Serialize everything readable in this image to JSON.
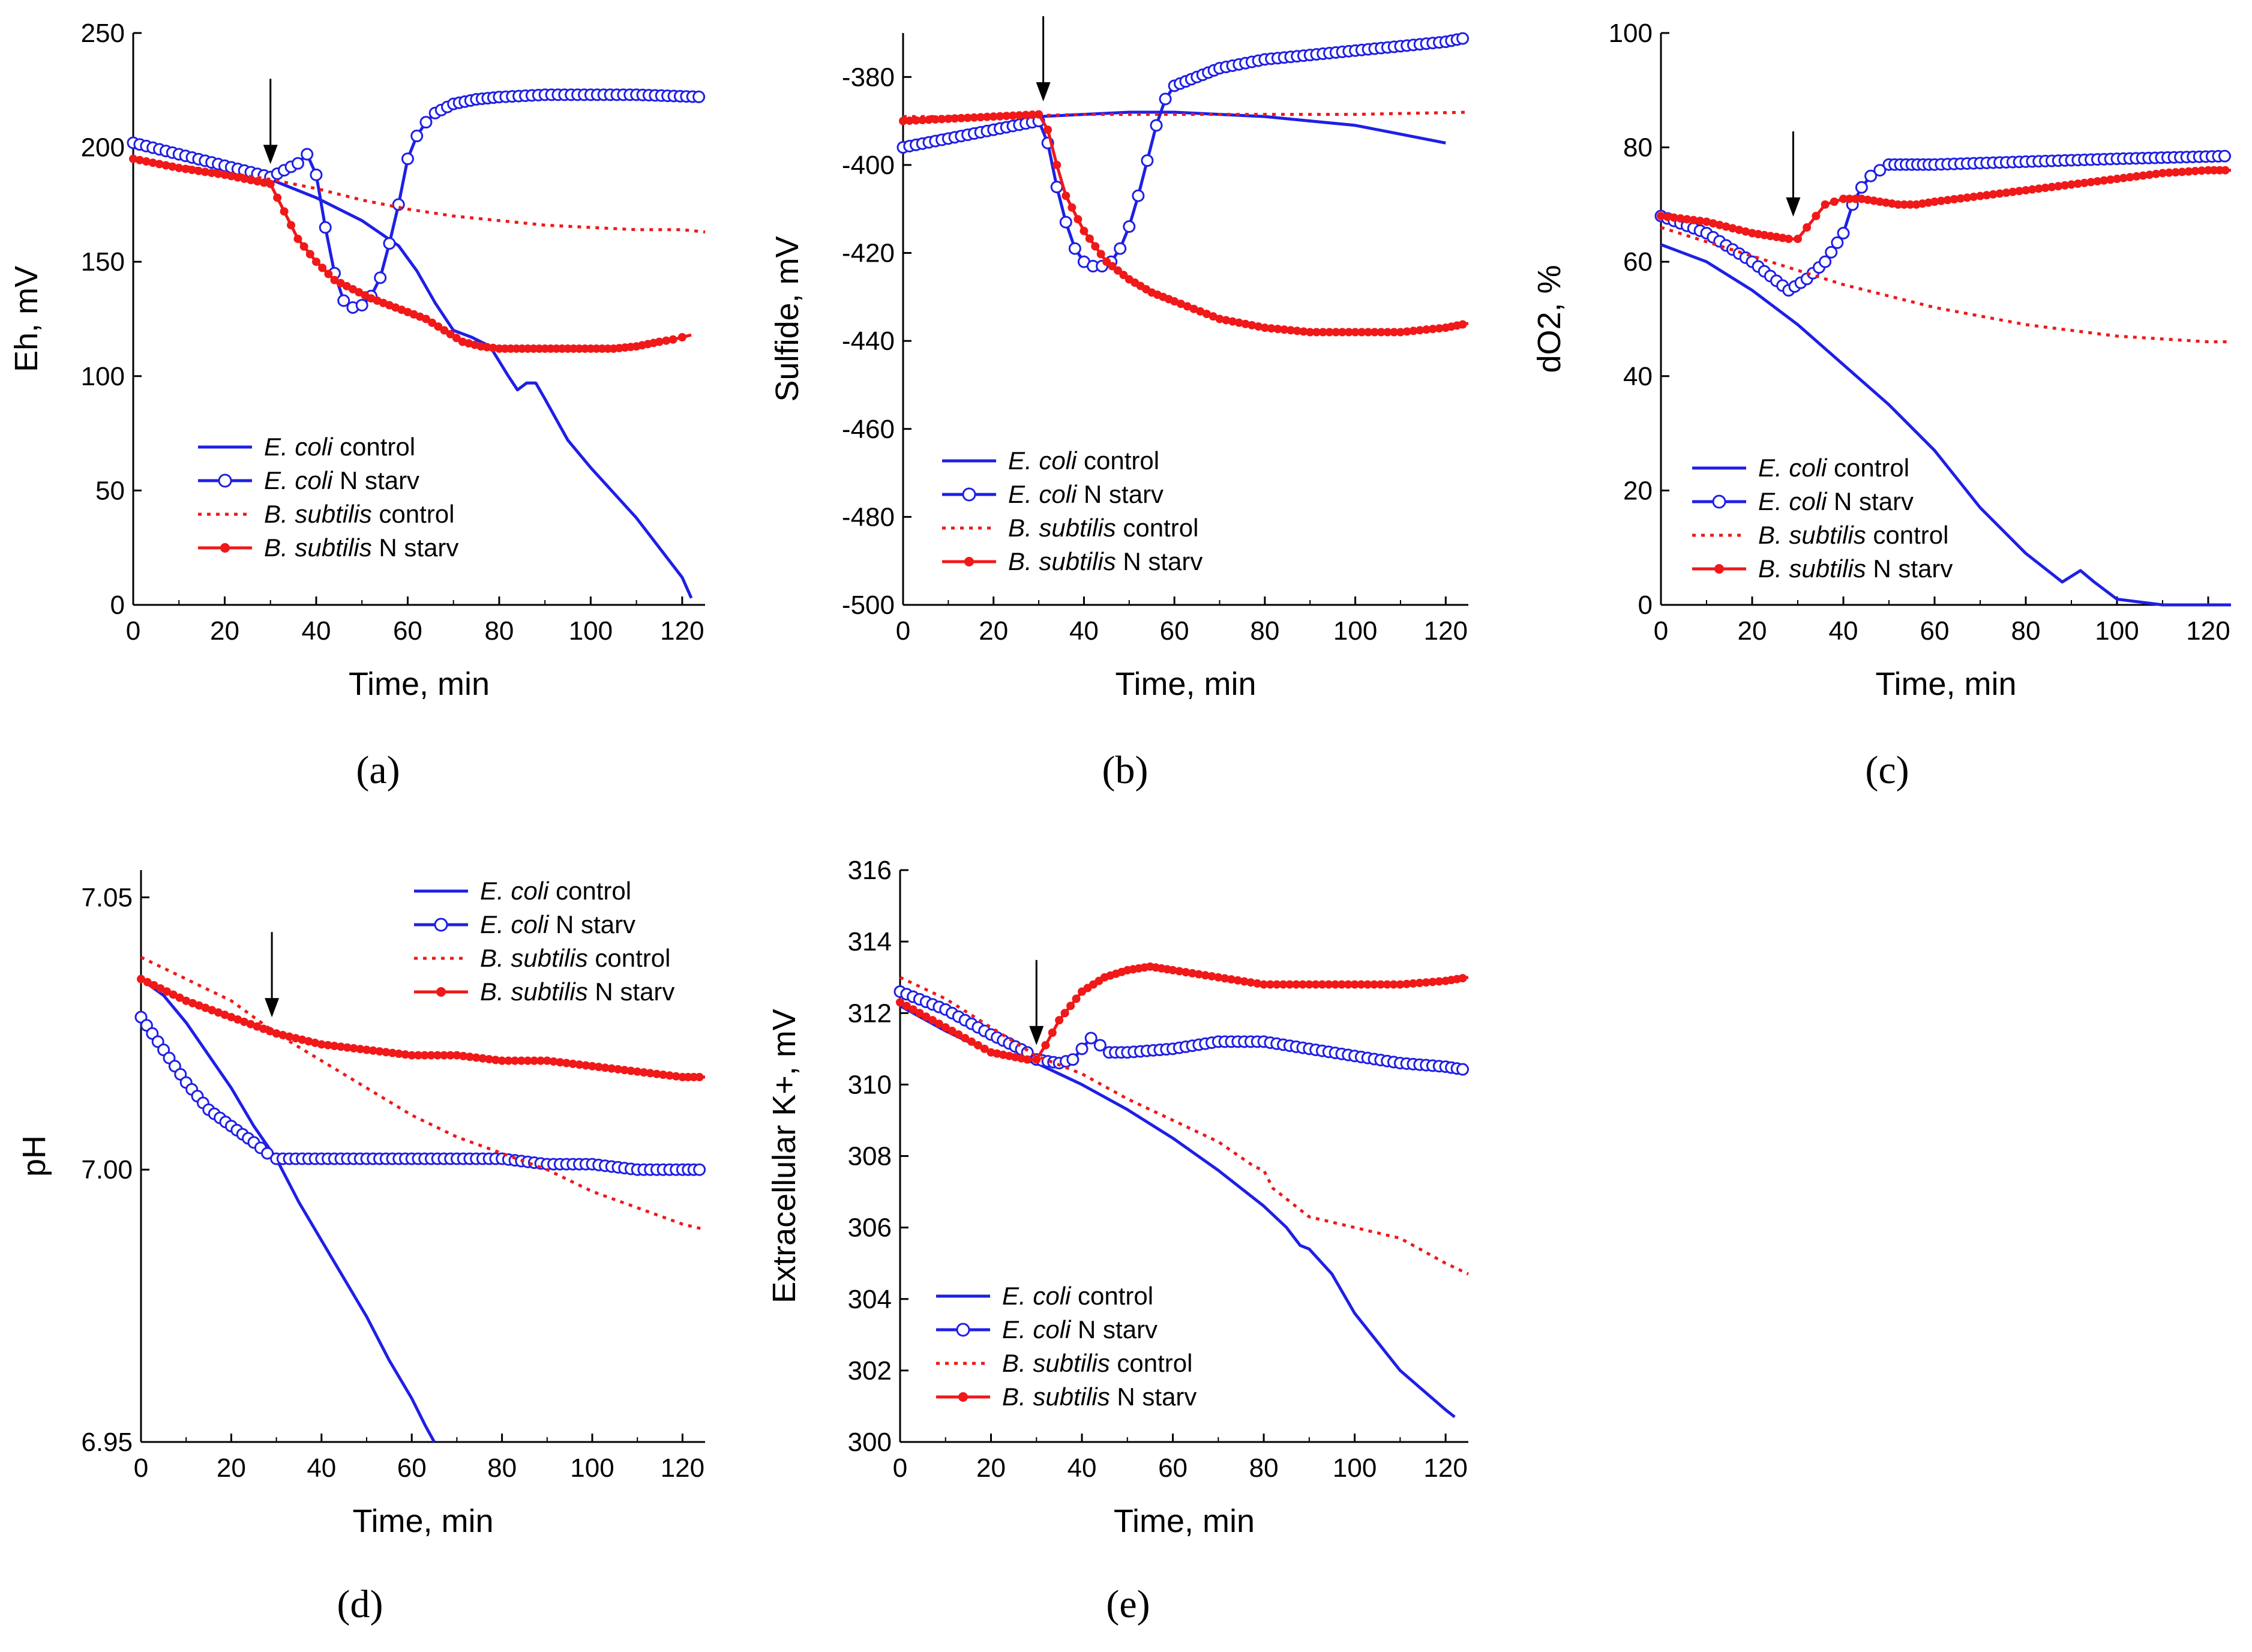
{
  "colors": {
    "blue": "#1f1fe6",
    "red": "#f01818",
    "axis": "#000000"
  },
  "legend": [
    {
      "italic": "E. coli",
      "plain": " control",
      "series": "ecoli_control"
    },
    {
      "italic": "E. coli",
      "plain": " N starv",
      "series": "ecoli_nstarv"
    },
    {
      "italic": "B. subtilis",
      "plain": " control",
      "series": "bsub_control"
    },
    {
      "italic": "B. subtilis",
      "plain": " N starv",
      "series": "bsub_nstarv"
    }
  ],
  "chart_data": [
    {
      "id": "a",
      "panel_label": "(a)",
      "type": "line",
      "xlabel": "Time, min",
      "ylabel": "Eh, mV",
      "xlim": [
        0,
        125
      ],
      "ylim": [
        0,
        250
      ],
      "xticks": [
        "0",
        "20",
        "40",
        "60",
        "80",
        "100",
        "120"
      ],
      "yticks": [
        "0",
        "50",
        "100",
        "150",
        "200",
        "250"
      ],
      "ytick_values": [
        0,
        50,
        100,
        150,
        200,
        250
      ],
      "arrow_x": 30,
      "arrow_y": 188,
      "series": [
        {
          "key": "ecoli_control",
          "x": [
            0,
            10,
            20,
            30,
            40,
            50,
            58,
            62,
            66,
            70,
            74,
            78,
            82,
            84,
            86,
            88,
            90,
            95,
            100,
            110,
            120,
            122
          ],
          "y": [
            200,
            196,
            191,
            186,
            178,
            168,
            157,
            146,
            132,
            120,
            117,
            113,
            100,
            94,
            97,
            97,
            90,
            72,
            60,
            38,
            12,
            3
          ]
        },
        {
          "key": "ecoli_nstarv",
          "x": [
            0,
            10,
            20,
            30,
            33,
            36,
            38,
            40,
            42,
            44,
            46,
            48,
            50,
            52,
            54,
            56,
            58,
            60,
            62,
            64,
            66,
            70,
            75,
            80,
            90,
            100,
            110,
            125
          ],
          "y": [
            202,
            197,
            192,
            187,
            190,
            193,
            197,
            188,
            165,
            145,
            133,
            130,
            131,
            135,
            143,
            158,
            175,
            195,
            205,
            211,
            215,
            219,
            221,
            222,
            223,
            223,
            223,
            222
          ],
          "markers": true
        },
        {
          "key": "bsub_control",
          "x": [
            0,
            10,
            20,
            30,
            40,
            50,
            60,
            70,
            80,
            90,
            100,
            110,
            120,
            125
          ],
          "y": [
            195,
            192,
            189,
            186,
            182,
            177,
            173,
            170,
            168,
            166,
            165,
            164,
            164,
            163
          ]
        },
        {
          "key": "bsub_nstarv",
          "x": [
            0,
            10,
            20,
            30,
            33,
            36,
            40,
            44,
            48,
            52,
            56,
            60,
            64,
            68,
            72,
            76,
            80,
            85,
            90,
            95,
            100,
            105,
            110,
            115,
            118,
            120,
            122
          ],
          "y": [
            195,
            191,
            188,
            184,
            172,
            160,
            150,
            142,
            138,
            134,
            131,
            128,
            125,
            120,
            115,
            113,
            112,
            112,
            112,
            112,
            112,
            112,
            113,
            115,
            116,
            117,
            118
          ],
          "markers": true
        }
      ]
    },
    {
      "id": "b",
      "panel_label": "(b)",
      "type": "line",
      "xlabel": "Time, min",
      "ylabel": "Sulfide, mV",
      "xlim": [
        0,
        125
      ],
      "ylim": [
        -500,
        -370
      ],
      "xticks": [
        "0",
        "20",
        "40",
        "60",
        "80",
        "100",
        "120"
      ],
      "yticks": [
        "-500",
        "-480",
        "-460",
        "-440",
        "-420",
        "-400",
        "-380"
      ],
      "ytick_values": [
        -500,
        -480,
        -460,
        -440,
        -420,
        -400,
        -380
      ],
      "arrow_x": 31,
      "arrow_y": -388,
      "series": [
        {
          "key": "ecoli_control",
          "x": [
            0,
            10,
            20,
            30,
            40,
            50,
            60,
            70,
            80,
            90,
            100,
            110,
            120
          ],
          "y": [
            -395,
            -393,
            -391,
            -389,
            -388.5,
            -388,
            -388,
            -388.5,
            -389,
            -390,
            -391,
            -393,
            -395
          ]
        },
        {
          "key": "ecoli_nstarv",
          "x": [
            0,
            10,
            20,
            30,
            32,
            34,
            36,
            38,
            40,
            42,
            44,
            46,
            48,
            50,
            52,
            54,
            56,
            58,
            60,
            65,
            70,
            80,
            90,
            100,
            110,
            120,
            125
          ],
          "y": [
            -396,
            -394,
            -392,
            -390,
            -395,
            -405,
            -413,
            -419,
            -422,
            -423,
            -423,
            -422,
            -419,
            -414,
            -407,
            -399,
            -391,
            -385,
            -382,
            -380,
            -378,
            -376,
            -375,
            -374,
            -373,
            -372,
            -371
          ],
          "markers": true
        },
        {
          "key": "bsub_control",
          "x": [
            0,
            20,
            40,
            60,
            80,
            100,
            125
          ],
          "y": [
            -389,
            -389,
            -388.5,
            -388.5,
            -388.5,
            -388.5,
            -388
          ]
        },
        {
          "key": "bsub_nstarv",
          "x": [
            0,
            10,
            20,
            30,
            32,
            34,
            36,
            40,
            45,
            50,
            55,
            60,
            70,
            80,
            90,
            100,
            110,
            120,
            125
          ],
          "y": [
            -390,
            -389.5,
            -389,
            -388.5,
            -392,
            -400,
            -407,
            -415,
            -422,
            -426,
            -429,
            -431,
            -435,
            -437,
            -438,
            -438,
            -438,
            -437,
            -436
          ],
          "markers": true
        }
      ]
    },
    {
      "id": "c",
      "panel_label": "(c)",
      "type": "line",
      "xlabel": "Time, min",
      "ylabel": "dO2, %",
      "xlim": [
        0,
        125
      ],
      "ylim": [
        0,
        100
      ],
      "xticks": [
        "0",
        "20",
        "40",
        "60",
        "80",
        "100",
        "120"
      ],
      "yticks": [
        "0",
        "20",
        "40",
        "60",
        "80",
        "100"
      ],
      "ytick_values": [
        0,
        20,
        40,
        60,
        80,
        100
      ],
      "arrow_x": 29,
      "arrow_y": 66,
      "series": [
        {
          "key": "ecoli_control",
          "x": [
            0,
            10,
            20,
            30,
            40,
            50,
            60,
            70,
            80,
            88,
            92,
            95,
            100,
            110,
            125
          ],
          "y": [
            63,
            60,
            55,
            49,
            42,
            35,
            27,
            17,
            9,
            4,
            6,
            4,
            1,
            0,
            0
          ]
        },
        {
          "key": "ecoli_nstarv",
          "x": [
            0,
            10,
            20,
            28,
            32,
            36,
            40,
            42,
            44,
            46,
            48,
            50,
            55,
            60,
            80,
            100,
            125
          ],
          "y": [
            68,
            65,
            60,
            55,
            57,
            60,
            65,
            70,
            73,
            75,
            76,
            77,
            77,
            77,
            77.5,
            78,
            78.5
          ],
          "markers": true
        },
        {
          "key": "bsub_control",
          "x": [
            0,
            20,
            40,
            60,
            80,
            100,
            120,
            125
          ],
          "y": [
            66,
            61,
            56,
            52,
            49,
            47,
            46,
            46
          ]
        },
        {
          "key": "bsub_nstarv",
          "x": [
            0,
            10,
            20,
            28,
            30,
            32,
            34,
            36,
            38,
            40,
            44,
            48,
            52,
            56,
            60,
            70,
            80,
            90,
            100,
            110,
            120,
            125
          ],
          "y": [
            68,
            67,
            65,
            64,
            64,
            66,
            68,
            70,
            70.5,
            71,
            71,
            70.5,
            70,
            70,
            70.5,
            71.5,
            72.5,
            73.5,
            74.5,
            75.5,
            76,
            76
          ],
          "markers": true
        }
      ]
    },
    {
      "id": "d",
      "panel_label": "(d)",
      "type": "line",
      "xlabel": "Time, min",
      "ylabel": "pH",
      "xlim": [
        0,
        125
      ],
      "ylim": [
        6.95,
        7.055
      ],
      "xticks": [
        "0",
        "20",
        "40",
        "60",
        "80",
        "100",
        "120"
      ],
      "yticks": [
        "6.95",
        "7.00",
        "7.05"
      ],
      "ytick_values": [
        6.95,
        7.0,
        7.05
      ],
      "arrow_x": 29,
      "arrow_y": 7.026,
      "series": [
        {
          "key": "ecoli_control",
          "x": [
            0,
            5,
            10,
            15,
            20,
            25,
            30,
            35,
            40,
            45,
            50,
            55,
            60,
            63,
            65
          ],
          "y": [
            7.035,
            7.032,
            7.027,
            7.021,
            7.015,
            7.008,
            7.002,
            6.994,
            6.987,
            6.98,
            6.973,
            6.965,
            6.958,
            6.953,
            6.95
          ]
        },
        {
          "key": "ecoli_nstarv",
          "x": [
            0,
            5,
            10,
            15,
            20,
            25,
            28,
            30,
            40,
            50,
            60,
            70,
            80,
            90,
            100,
            110,
            120,
            125
          ],
          "y": [
            7.028,
            7.022,
            7.016,
            7.011,
            7.008,
            7.005,
            7.003,
            7.002,
            7.002,
            7.002,
            7.002,
            7.002,
            7.002,
            7.001,
            7.001,
            7.0,
            7.0,
            7.0
          ],
          "markers": true
        },
        {
          "key": "bsub_control",
          "x": [
            0,
            20,
            30,
            40,
            50,
            60,
            70,
            80,
            90,
            100,
            110,
            120,
            125
          ],
          "y": [
            7.039,
            7.031,
            7.025,
            7.02,
            7.015,
            7.01,
            7.006,
            7.003,
            7.0,
            6.996,
            6.993,
            6.99,
            6.989
          ],
          "dashed": true
        },
        {
          "key": "bsub_nstarv",
          "x": [
            0,
            10,
            20,
            30,
            40,
            50,
            60,
            70,
            80,
            90,
            100,
            110,
            120,
            125
          ],
          "y": [
            7.035,
            7.031,
            7.028,
            7.025,
            7.023,
            7.022,
            7.021,
            7.021,
            7.02,
            7.02,
            7.019,
            7.018,
            7.017,
            7.017
          ],
          "markers": true
        }
      ]
    },
    {
      "id": "e",
      "panel_label": "(e)",
      "type": "line",
      "xlabel": "Time, min",
      "ylabel": "Extracellular K+, mV",
      "xlim": [
        0,
        125
      ],
      "ylim": [
        300,
        316
      ],
      "xticks": [
        "0",
        "20",
        "40",
        "60",
        "80",
        "100",
        "120"
      ],
      "yticks": [
        "300",
        "302",
        "304",
        "306",
        "308",
        "310",
        "312",
        "314",
        "316"
      ],
      "ytick_values": [
        300,
        302,
        304,
        306,
        308,
        310,
        312,
        314,
        316
      ],
      "arrow_x": 30,
      "arrow_y": 310.8,
      "series": [
        {
          "key": "ecoli_control",
          "x": [
            0,
            10,
            20,
            30,
            40,
            50,
            60,
            70,
            80,
            85,
            88,
            90,
            95,
            100,
            110,
            120,
            122
          ],
          "y": [
            312.2,
            311.5,
            310.9,
            310.6,
            310.0,
            309.3,
            308.5,
            307.6,
            306.6,
            306.0,
            305.5,
            305.4,
            304.7,
            303.6,
            302.0,
            300.9,
            300.7
          ]
        },
        {
          "key": "ecoli_nstarv",
          "x": [
            0,
            10,
            20,
            28,
            30,
            35,
            38,
            40,
            42,
            44,
            46,
            50,
            60,
            70,
            80,
            90,
            100,
            110,
            120,
            125
          ],
          "y": [
            312.6,
            312.1,
            311.4,
            310.9,
            310.7,
            310.6,
            310.7,
            311.0,
            311.3,
            311.1,
            310.9,
            310.9,
            311.0,
            311.2,
            311.2,
            311.0,
            310.8,
            310.6,
            310.5,
            310.4
          ],
          "markers": true
        },
        {
          "key": "bsub_control",
          "x": [
            0,
            10,
            20,
            30,
            40,
            50,
            60,
            70,
            78,
            80,
            82,
            85,
            90,
            100,
            110,
            120,
            125
          ],
          "y": [
            313.0,
            312.4,
            311.6,
            310.8,
            310.3,
            309.6,
            309.0,
            308.4,
            307.7,
            307.6,
            307.1,
            306.8,
            306.3,
            306.0,
            305.7,
            305.0,
            304.7
          ]
        },
        {
          "key": "bsub_nstarv",
          "x": [
            0,
            10,
            20,
            28,
            30,
            32,
            35,
            40,
            45,
            50,
            55,
            60,
            70,
            80,
            90,
            100,
            110,
            120,
            125
          ],
          "y": [
            312.3,
            311.6,
            310.9,
            310.7,
            310.7,
            311.1,
            311.8,
            312.6,
            313.0,
            313.2,
            313.3,
            313.2,
            313.0,
            312.8,
            312.8,
            312.8,
            312.8,
            312.9,
            313.0
          ],
          "markers": true
        }
      ]
    }
  ]
}
